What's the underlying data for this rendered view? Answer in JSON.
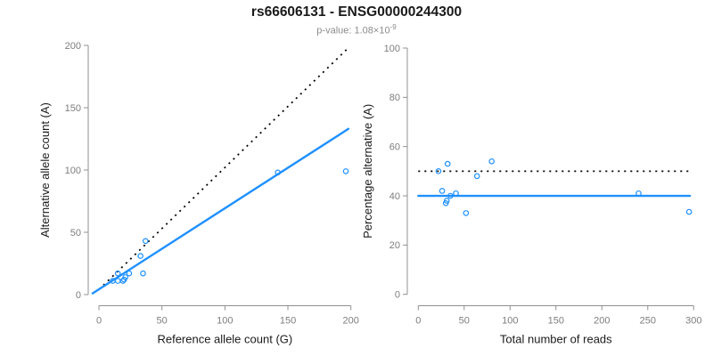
{
  "header": {
    "title": "rs66606131 - ENSG00000244300",
    "pvalue_prefix": "p-value: ",
    "pvalue_mantissa": "1.08×10",
    "pvalue_exponent": "-9"
  },
  "colors": {
    "accent_blue": "#1E90FF",
    "line_black": "#000000",
    "axis_gray": "#909090",
    "tick_label_gray": "#7d7d7d",
    "subtitle_gray": "#8c8c8c"
  },
  "chart_data": [
    {
      "type": "scatter",
      "title": "",
      "xlabel": "Reference allele count (G)",
      "ylabel": "Alternative allele count (A)",
      "xlim": [
        0,
        200
      ],
      "ylim": [
        0,
        200
      ],
      "xticks": [
        0,
        50,
        100,
        150,
        200
      ],
      "yticks": [
        0,
        50,
        100,
        150,
        200
      ],
      "grid": false,
      "marker": "open-circle",
      "points": [
        [
          11,
          11
        ],
        [
          15,
          11
        ],
        [
          19,
          11
        ],
        [
          20,
          12
        ],
        [
          15,
          17
        ],
        [
          21,
          14
        ],
        [
          24,
          17
        ],
        [
          35,
          17
        ],
        [
          33,
          31
        ],
        [
          37,
          43
        ],
        [
          142,
          98
        ],
        [
          196,
          99
        ]
      ],
      "lines": [
        {
          "name": "identity-line",
          "style": "dotted",
          "color": "#000000",
          "x1": 0,
          "y1": 4,
          "x2": 199,
          "y2": 199
        },
        {
          "name": "fit-line",
          "style": "solid",
          "color": "#1E90FF",
          "x1": -5,
          "y1": 1,
          "x2": 198,
          "y2": 133
        }
      ]
    },
    {
      "type": "scatter",
      "title": "",
      "xlabel": "Total number of reads",
      "ylabel": "Percentage alternative (A)",
      "xlim": [
        0,
        300
      ],
      "ylim": [
        0,
        100
      ],
      "xticks": [
        0,
        50,
        100,
        150,
        200,
        250,
        300
      ],
      "yticks": [
        0,
        20,
        40,
        60,
        80,
        100
      ],
      "grid": false,
      "marker": "open-circle",
      "points": [
        [
          22,
          50
        ],
        [
          26,
          42
        ],
        [
          30,
          37
        ],
        [
          31,
          38
        ],
        [
          32,
          53
        ],
        [
          35,
          40
        ],
        [
          41,
          41
        ],
        [
          52,
          33
        ],
        [
          64,
          48
        ],
        [
          80,
          54
        ],
        [
          240,
          41
        ],
        [
          295,
          33.5
        ]
      ],
      "lines": [
        {
          "name": "expected-50pct-line",
          "style": "dotted",
          "color": "#000000",
          "x1": 0,
          "y1": 50,
          "x2": 296,
          "y2": 50
        },
        {
          "name": "mean-pct-line",
          "style": "solid",
          "color": "#1E90FF",
          "x1": 0,
          "y1": 40,
          "x2": 296,
          "y2": 40
        }
      ]
    }
  ]
}
